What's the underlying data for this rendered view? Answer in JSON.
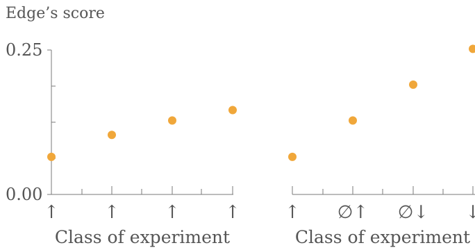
{
  "chart_data": [
    {
      "type": "scatter",
      "ylabel": "Edge’s score",
      "xlabel": "Class of experiment",
      "ylim": [
        0,
        0.25
      ],
      "yticks": [
        "0.00",
        "0.25"
      ],
      "categories": [
        "↑",
        "↑",
        "↑",
        "↑"
      ],
      "values": [
        0.065,
        0.103,
        0.128,
        0.146
      ],
      "color": "#f0a73a"
    },
    {
      "type": "scatter",
      "xlabel": "Class of experiment",
      "ylim": [
        0,
        0.25
      ],
      "categories": [
        "↑",
        "∅↑",
        "∅↓",
        "↓"
      ],
      "values": [
        0.065,
        0.128,
        0.19,
        0.252
      ],
      "color": "#f0a73a"
    }
  ]
}
